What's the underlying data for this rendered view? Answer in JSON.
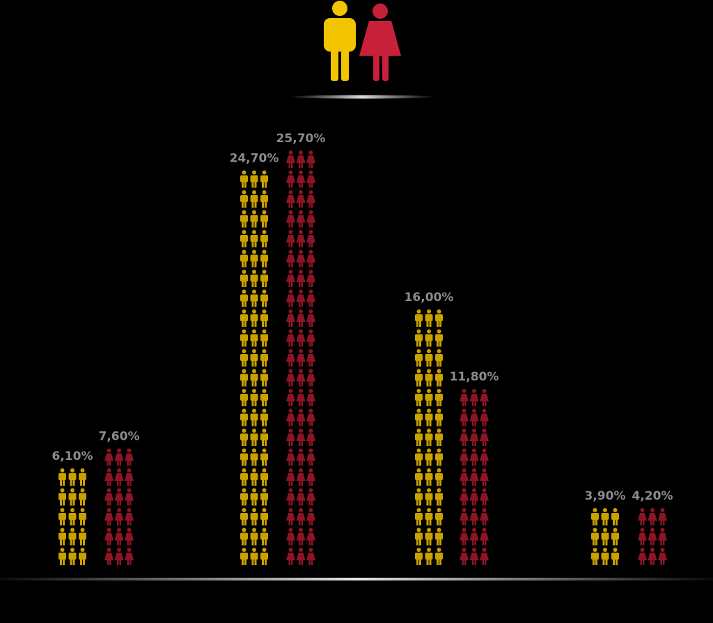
{
  "chart_data": {
    "type": "bar",
    "title": "",
    "xlabel": "",
    "ylabel": "",
    "categories": [
      "",
      "",
      "",
      ""
    ],
    "series": [
      {
        "values": [
          6.1,
          24.7,
          16.0,
          3.9
        ],
        "labels": [
          "6,10%",
          "24,70%",
          "16,00%",
          "3,90%"
        ],
        "icon": "male-person-icon"
      },
      {
        "values": [
          7.6,
          25.7,
          11.8,
          4.2
        ],
        "labels": [
          "7,60%",
          "25,70%",
          "11,80%",
          "4,20%"
        ],
        "icon": "female-person-icon"
      }
    ],
    "unit": "%",
    "grid": false,
    "legend": "top-center pictogram (man and woman)"
  },
  "colors": {
    "background": "#000000",
    "male": "#f2c500",
    "female": "#c8203a",
    "male_icon": "#c9a100",
    "female_icon": "#8c1525",
    "value_label": "#8c8c8c",
    "baseline": "#cfcfcf"
  },
  "legend_icons": [
    "male-person-icon",
    "female-person-icon"
  ]
}
